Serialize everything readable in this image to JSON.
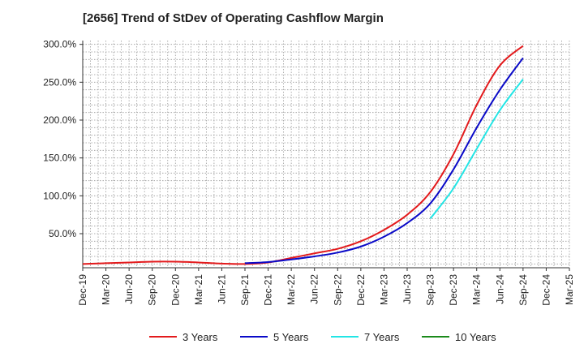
{
  "chart_data": {
    "type": "line",
    "title": "[2656]  Trend of StDev of Operating Cashflow Margin",
    "xlabel": "",
    "ylabel": "",
    "x_ticks": [
      "Dec-19",
      "Mar-20",
      "Jun-20",
      "Sep-20",
      "Dec-20",
      "Mar-21",
      "Jun-21",
      "Sep-21",
      "Dec-21",
      "Mar-22",
      "Jun-22",
      "Sep-22",
      "Dec-22",
      "Mar-23",
      "Jun-23",
      "Sep-23",
      "Dec-23",
      "Mar-24",
      "Jun-24",
      "Sep-24",
      "Dec-24",
      "Mar-25"
    ],
    "y_ticks": [
      "50.0%",
      "100.0%",
      "150.0%",
      "200.0%",
      "250.0%",
      "300.0%"
    ],
    "y_tick_values": [
      50,
      100,
      150,
      200,
      250,
      300
    ],
    "ylim": [
      5,
      305
    ],
    "grid": true,
    "legend_position": "bottom",
    "series": [
      {
        "name": "3 Years",
        "color": "#e31a1c",
        "x": [
          "Dec-19",
          "Mar-20",
          "Jun-20",
          "Sep-20",
          "Dec-20",
          "Mar-21",
          "Jun-21",
          "Sep-21",
          "Dec-21",
          "Mar-22",
          "Jun-22",
          "Sep-22",
          "Dec-22",
          "Mar-23",
          "Jun-23",
          "Sep-23",
          "Dec-23",
          "Mar-24",
          "Jun-24",
          "Sep-24"
        ],
        "values": [
          10,
          11,
          12,
          13,
          13,
          12,
          10.5,
          10,
          12,
          18,
          24,
          30,
          40,
          55,
          75,
          105,
          155,
          220,
          272,
          298
        ]
      },
      {
        "name": "5 Years",
        "color": "#0a0ac8",
        "x": [
          "Sep-21",
          "Dec-21",
          "Mar-22",
          "Jun-22",
          "Sep-22",
          "Dec-22",
          "Mar-23",
          "Jun-23",
          "Sep-23",
          "Dec-23",
          "Mar-24",
          "Jun-24",
          "Sep-24"
        ],
        "values": [
          11,
          12.5,
          16,
          20,
          25,
          33,
          46,
          64,
          90,
          135,
          190,
          240,
          282
        ]
      },
      {
        "name": "7 Years",
        "color": "#22e5e5",
        "x": [
          "Sep-23",
          "Dec-23",
          "Mar-24",
          "Jun-24",
          "Sep-24"
        ],
        "values": [
          70,
          110,
          162,
          213,
          254
        ]
      },
      {
        "name": "10 Years",
        "color": "#1b8a1b",
        "x": [],
        "values": []
      }
    ]
  }
}
